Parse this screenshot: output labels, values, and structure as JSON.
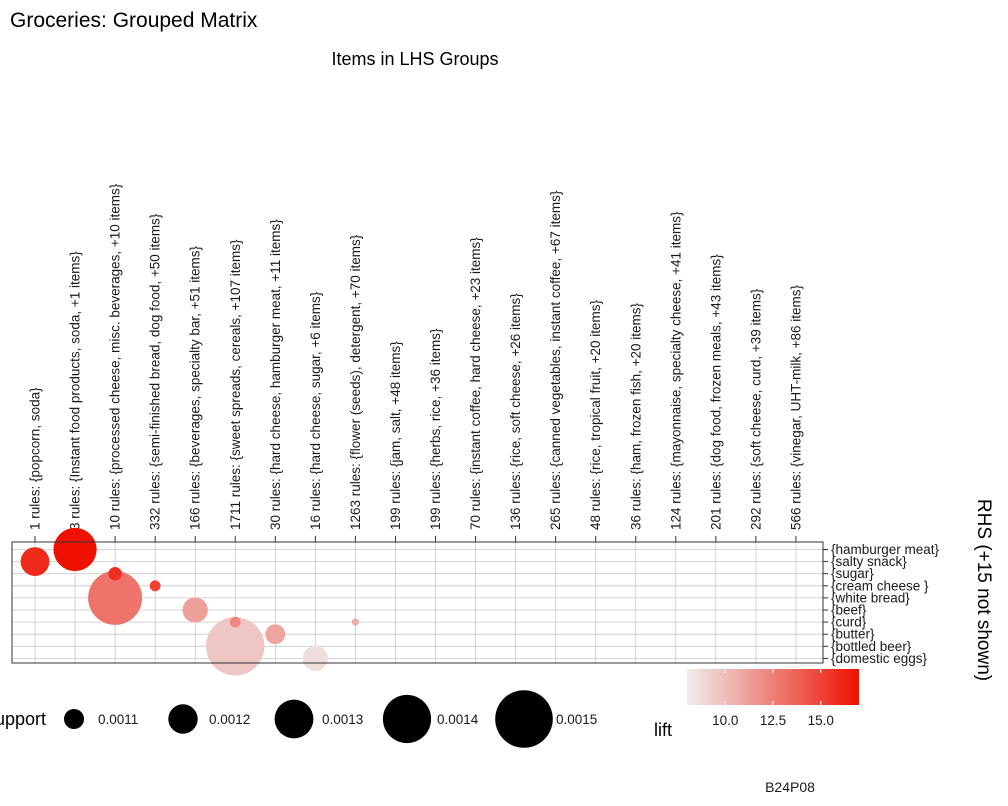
{
  "chart_data": {
    "type": "scatter",
    "title": "Groceries: Grouped Matrix",
    "subtitle": "Items in LHS Groups",
    "rhs_axis_label": "RHS (+15 not shown)",
    "columns": [
      "1 rules: {popcorn, soda}",
      "3 rules: {Instant food products, soda, +1 items}",
      "10 rules: {processed cheese, misc. beverages, +10 items}",
      "332 rules: {semi-finished bread, dog food, +50 items}",
      "166 rules: {beverages, specialty bar, +51 items}",
      "1711 rules: {sweet spreads, cereals, +107 items}",
      "30 rules: {hard cheese, hamburger meat, +11 items}",
      "16 rules: {hard cheese, sugar, +6 items}",
      "1263 rules: {flower (seeds), detergent, +70 items}",
      "199 rules: {jam, salt, +48 items}",
      "199 rules: {herbs, rice, +36 items}",
      "70 rules: {instant coffee, hard cheese, +23 items}",
      "136 rules: {rice, soft cheese, +26 items}",
      "265 rules: {canned vegetables, instant coffee, +67 items}",
      "48 rules: {rice, tropical fruit, +20 items}",
      "36 rules: {ham, frozen fish, +20 items}",
      "124 rules: {mayonnaise, specialty cheese, +41 items}",
      "201 rules: {dog food, frozen meals, +43 items}",
      "292 rules: {soft cheese, curd, +39 items}",
      "566 rules: {vinegar, UHT-milk, +86 items}"
    ],
    "rows": [
      "{hamburger meat}",
      "{salty snack}",
      "{sugar}",
      "{cream cheese }",
      "{white bread}",
      "{beef}",
      "{curd}",
      "{butter}",
      "{bottled beer}",
      "{domestic eggs}"
    ],
    "points": [
      {
        "col": 1,
        "row": 0,
        "support": 0.00138,
        "lift": 17.0
      },
      {
        "col": 0,
        "row": 1,
        "support": 0.00122,
        "lift": 16.0
      },
      {
        "col": 2,
        "row": 2,
        "support": 0.00105,
        "lift": 15.8
      },
      {
        "col": 3,
        "row": 3,
        "support": 0.00102,
        "lift": 15.0
      },
      {
        "col": 2,
        "row": 4,
        "support": 0.0015,
        "lift": 13.0
      },
      {
        "col": 4,
        "row": 5,
        "support": 0.00118,
        "lift": 11.2
      },
      {
        "col": 5,
        "row": 6,
        "support": 0.00102,
        "lift": 12.2
      },
      {
        "col": 6,
        "row": 7,
        "support": 0.00112,
        "lift": 11.0
      },
      {
        "col": 8,
        "row": 6,
        "support": 0.00098,
        "lift": 10.6
      },
      {
        "col": 5,
        "row": 8,
        "support": 0.00155,
        "lift": 9.6
      },
      {
        "col": 7,
        "row": 9,
        "support": 0.00118,
        "lift": 8.6
      }
    ],
    "size_legend": {
      "title": "support",
      "values": [
        0.0011,
        0.0012,
        0.0013,
        0.0014,
        0.0015
      ],
      "labels": [
        "0.0011",
        "0.0012",
        "0.0013",
        "0.0014",
        "0.0015"
      ]
    },
    "color_legend": {
      "title": "lift",
      "min": 8.0,
      "max": 17.0,
      "ticks": [
        10.0,
        12.5,
        15.0
      ],
      "tick_labels": [
        "10.0",
        "12.5",
        "15.0"
      ],
      "low_color": "#eeeeee",
      "high_color": "#ee1100"
    },
    "caption": "B24P08"
  }
}
